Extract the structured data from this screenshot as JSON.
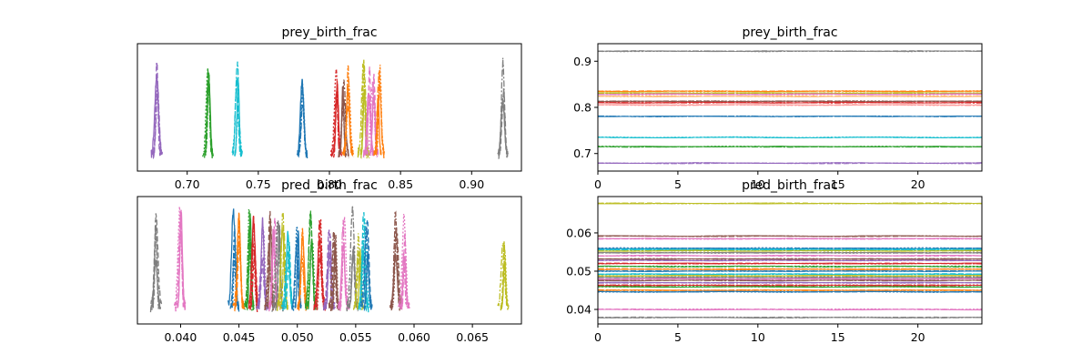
{
  "chart_data": [
    {
      "type": "line",
      "title": "prey_birth_frac",
      "xticks": [
        "0.70",
        "0.75",
        "0.80",
        "0.85",
        "0.90"
      ],
      "xlim": [
        0.665,
        0.935
      ],
      "yticks": [],
      "kde_centers": [
        0.679,
        0.715,
        0.735,
        0.781,
        0.805,
        0.81,
        0.813,
        0.824,
        0.828,
        0.831,
        0.835,
        0.922
      ],
      "series_colors": [
        "#9467bd",
        "#2ca02c",
        "#17becf",
        "#1f77b4",
        "#d62728",
        "#8c564b",
        "#ff7f0e",
        "#bcbd22",
        "#e377c2",
        "#e377c2",
        "#ff7f0e",
        "#7f7f7f"
      ]
    },
    {
      "type": "line",
      "title": "prey_birth_frac",
      "xticks": [
        "0",
        "5",
        "10",
        "15",
        "20"
      ],
      "xlim": [
        0,
        24
      ],
      "yticks": [
        "0.7",
        "0.8",
        "0.9"
      ],
      "ylim": [
        0.662,
        0.938
      ],
      "trace_levels": [
        0.922,
        0.835,
        0.831,
        0.828,
        0.824,
        0.813,
        0.81,
        0.805,
        0.781,
        0.735,
        0.715,
        0.679
      ],
      "series_colors": [
        "#7f7f7f",
        "#ff7f0e",
        "#bcbd22",
        "#e377c2",
        "#ffbb78",
        "#8c564b",
        "#d62728",
        "#ff9896",
        "#1f77b4",
        "#17becf",
        "#2ca02c",
        "#9467bd"
      ]
    },
    {
      "type": "line",
      "title": "pred_birth_frac",
      "xticks": [
        "0.040",
        "0.045",
        "0.050",
        "0.055",
        "0.060",
        "0.065"
      ],
      "xlim": [
        0.0363,
        0.0692
      ],
      "yticks": [],
      "kde_centers": [
        0.0379,
        0.04,
        0.0446,
        0.045,
        0.0459,
        0.0463,
        0.047,
        0.0476,
        0.048,
        0.0484,
        0.0488,
        0.0492,
        0.05,
        0.0505,
        0.0512,
        0.052,
        0.0528,
        0.0532,
        0.054,
        0.0548,
        0.0553,
        0.0557,
        0.056,
        0.0585,
        0.0592,
        0.0677
      ],
      "series_colors": [
        "#7f7f7f",
        "#e377c2",
        "#1f77b4",
        "#ff7f0e",
        "#2ca02c",
        "#d62728",
        "#9467bd",
        "#8c564b",
        "#e377c2",
        "#7f7f7f",
        "#bcbd22",
        "#17becf",
        "#1f77b4",
        "#ff7f0e",
        "#2ca02c",
        "#d62728",
        "#9467bd",
        "#8c564b",
        "#e377c2",
        "#7f7f7f",
        "#bcbd22",
        "#17becf",
        "#1f77b4",
        "#8c564b",
        "#e377c2",
        "#bcbd22"
      ]
    },
    {
      "type": "line",
      "title": "pred_birth_frac",
      "xticks": [
        "0",
        "5",
        "10",
        "15",
        "20"
      ],
      "xlim": [
        0,
        24
      ],
      "yticks": [
        "0.04",
        "0.05",
        "0.06"
      ],
      "ylim": [
        0.0362,
        0.0695
      ],
      "trace_levels": [
        0.0677,
        0.0592,
        0.0585,
        0.056,
        0.0557,
        0.0553,
        0.0548,
        0.054,
        0.0532,
        0.0528,
        0.052,
        0.0512,
        0.0505,
        0.05,
        0.0492,
        0.0488,
        0.0484,
        0.048,
        0.0476,
        0.047,
        0.0463,
        0.0459,
        0.045,
        0.0446,
        0.04,
        0.0379
      ],
      "series_colors": [
        "#bcbd22",
        "#8c564b",
        "#e377c2",
        "#1f77b4",
        "#17becf",
        "#bcbd22",
        "#7f7f7f",
        "#e377c2",
        "#8c564b",
        "#9467bd",
        "#d62728",
        "#2ca02c",
        "#ff7f0e",
        "#1f77b4",
        "#17becf",
        "#bcbd22",
        "#7f7f7f",
        "#e377c2",
        "#8c564b",
        "#9467bd",
        "#d62728",
        "#2ca02c",
        "#ff7f0e",
        "#1f77b4",
        "#e377c2",
        "#7f7f7f"
      ]
    }
  ]
}
